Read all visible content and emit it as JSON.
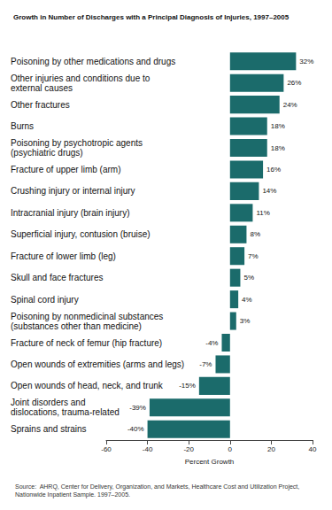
{
  "chart_data": {
    "type": "bar",
    "title": "Growth in Number of Discharges with a Principal Diagnosis of Injuries, 1997–2005",
    "orientation": "horizontal",
    "categories": [
      "Poisoning by other medications and drugs",
      "Other injuries and conditions due to\nexternal causes",
      "Other fractures",
      "Burns",
      "Poisoning by psychotropic agents\n(psychiatric drugs)",
      "Fracture of upper limb (arm)",
      "Crushing injury or internal injury",
      "Intracranial injury (brain injury)",
      "Superficial injury, contusion (bruise)",
      "Fracture of lower limb (leg)",
      "Skull and face fractures",
      "Spinal cord injury",
      "Poisoning by nonmedicinal substances\n(substances other than medicine)",
      "Fracture of neck of femur (hip fracture)",
      "Open wounds of extremities (arms and legs)",
      "Open wounds of head, neck, and trunk",
      "Joint disorders and\ndislocations, trauma-related",
      "Sprains and strains"
    ],
    "values": [
      32,
      26,
      24,
      18,
      18,
      16,
      14,
      11,
      8,
      7,
      5,
      4,
      3,
      -4,
      -7,
      -15,
      -39,
      -40
    ],
    "value_labels": [
      "32%",
      "26%",
      "24%",
      "18%",
      "18%",
      "16%",
      "14%",
      "11%",
      "8%",
      "7%",
      "5%",
      "4%",
      "3%",
      "-4%",
      "-7%",
      "-15%",
      "-39%",
      "-40%"
    ],
    "data_labels": true,
    "color": "#1b6b6b",
    "xlabel": "Percent Growth",
    "xlim": [
      -60,
      40
    ],
    "xticks": [
      -60,
      -40,
      -20,
      0,
      20,
      40
    ],
    "grid": false,
    "source": "Source:  AHRQ, Center for Delivery, Organization, and Markets, Healthcare Cost and Utilization Project, Nationwide Inpatient Sample. 1997–2005."
  }
}
